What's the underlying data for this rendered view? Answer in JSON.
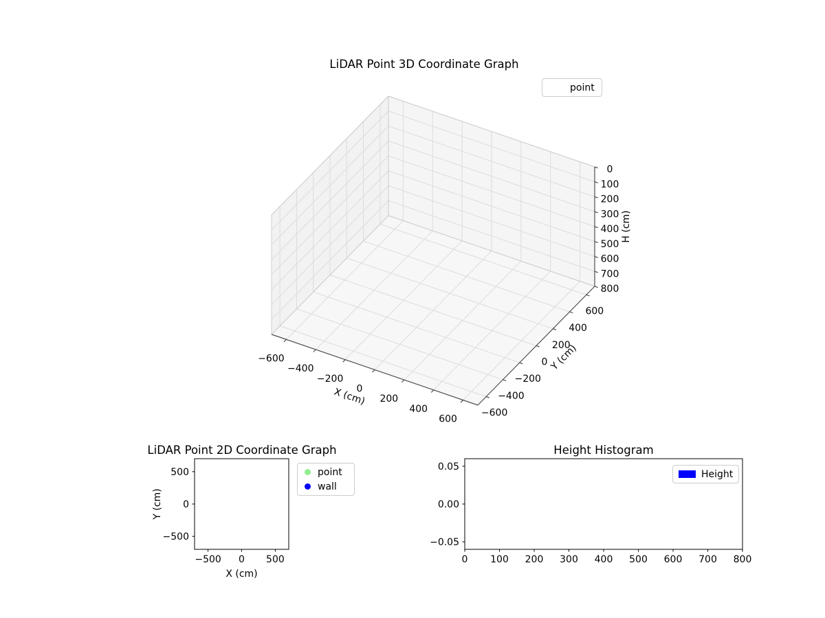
{
  "figure": {
    "background": "#ffffff"
  },
  "chart_data": [
    {
      "type": "scatter3d",
      "title": "LiDAR Point 3D Coordinate Graph",
      "xlabel": "X (cm)",
      "ylabel": "Y (cm)",
      "zlabel": "H (cm)",
      "xlim": [
        -700,
        700
      ],
      "ylim": [
        -700,
        700
      ],
      "zlim": [
        0,
        800
      ],
      "z_axis_inverted": true,
      "grid": true,
      "pane_color": "#f5f5f5",
      "xticks": {
        "values": [
          -600,
          -400,
          -200,
          0,
          200,
          400,
          600
        ],
        "labels": [
          "−600",
          "−400",
          "−200",
          "0",
          "200",
          "400",
          "600"
        ]
      },
      "yticks": {
        "values": [
          -600,
          -400,
          -200,
          0,
          200,
          400,
          600
        ],
        "labels": [
          "−600",
          "−400",
          "−200",
          "0",
          "200",
          "400",
          "600"
        ]
      },
      "zticks": {
        "values": [
          0,
          100,
          200,
          300,
          400,
          500,
          600,
          700,
          800
        ],
        "labels": [
          "0",
          "100",
          "200",
          "300",
          "400",
          "500",
          "600",
          "700",
          "800"
        ]
      },
      "legend": {
        "position": "upper-right-outside",
        "entries": [
          {
            "label": "point",
            "marker": "none"
          }
        ]
      },
      "series": [
        {
          "name": "point",
          "points": []
        }
      ]
    },
    {
      "type": "scatter",
      "title": "LiDAR Point 2D Coordinate Graph",
      "xlabel": "X (cm)",
      "ylabel": "Y (cm)",
      "xlim": [
        -700,
        700
      ],
      "ylim": [
        -700,
        700
      ],
      "grid": false,
      "xticks": {
        "values": [
          -500,
          0,
          500
        ],
        "labels": [
          "−500",
          "0",
          "500"
        ]
      },
      "yticks": {
        "values": [
          -500,
          0,
          500
        ],
        "labels": [
          "−500",
          "0",
          "500"
        ]
      },
      "legend": {
        "position": "right-outside",
        "entries": [
          {
            "label": "point",
            "color": "#90ee90",
            "marker": "circle"
          },
          {
            "label": "wall",
            "color": "#0000ff",
            "marker": "circle"
          }
        ]
      },
      "series": [
        {
          "name": "point",
          "points": []
        },
        {
          "name": "wall",
          "points": []
        }
      ]
    },
    {
      "type": "bar",
      "title": "Height Histogram",
      "xlabel": "",
      "ylabel": "",
      "xlim": [
        0,
        800
      ],
      "ylim": [
        -0.06,
        0.06
      ],
      "grid": false,
      "xticks": {
        "values": [
          0,
          100,
          200,
          300,
          400,
          500,
          600,
          700,
          800
        ],
        "labels": [
          "0",
          "100",
          "200",
          "300",
          "400",
          "500",
          "600",
          "700",
          "800"
        ]
      },
      "yticks": {
        "values": [
          -0.05,
          0,
          0.05
        ],
        "labels": [
          "−0.05",
          "0.00",
          "0.05"
        ]
      },
      "legend": {
        "position": "upper-right-inside",
        "entries": [
          {
            "label": "Height",
            "color": "#0000ff",
            "marker": "rect"
          }
        ]
      },
      "series": [
        {
          "name": "Height",
          "values": []
        }
      ]
    }
  ]
}
